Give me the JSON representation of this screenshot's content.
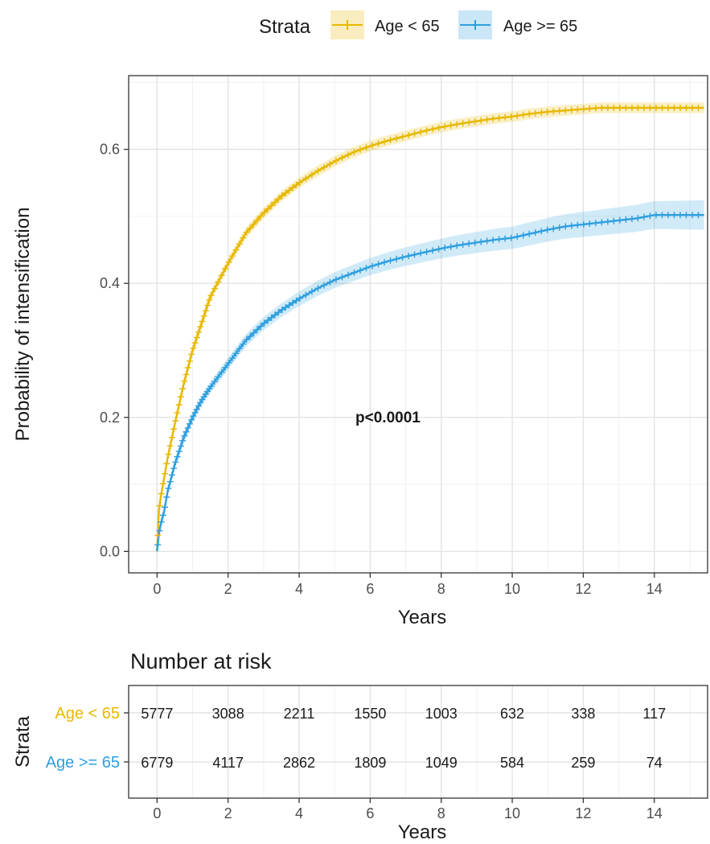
{
  "legend": {
    "title": "Strata",
    "entries": [
      {
        "label": "Age < 65",
        "color": "#E7B800"
      },
      {
        "label": "Age >= 65",
        "color": "#2E9FDF"
      }
    ]
  },
  "chart_data": [
    {
      "type": "line",
      "subtype": "kaplan-meier-cumulative-incidence",
      "title": "",
      "xlabel": "Years",
      "ylabel": "Probability of intensification",
      "xlim": [
        -0.8,
        15.5
      ],
      "ylim": [
        -0.032,
        0.71
      ],
      "xticks": [
        0,
        2,
        4,
        6,
        8,
        10,
        12,
        14
      ],
      "xtick_labels": [
        "0",
        "2",
        "4",
        "6",
        "8",
        "10",
        "12",
        "14"
      ],
      "yticks": [
        0.0,
        0.2,
        0.4,
        0.6
      ],
      "ytick_labels": [
        "0.0",
        "0.2",
        "0.4",
        "0.6"
      ],
      "grid": true,
      "legend_position": "top",
      "confidence_bands": true,
      "annotation": "p<0.0001",
      "annotation_at": {
        "x": 6.5,
        "y": 0.2
      },
      "series": [
        {
          "name": "Age < 65",
          "color": "#E7B800",
          "x": [
            0,
            0.05,
            0.1,
            0.2,
            0.3,
            0.5,
            0.75,
            1.0,
            1.25,
            1.5,
            2.0,
            2.5,
            3.0,
            3.5,
            4.0,
            4.5,
            5.0,
            5.5,
            6.0,
            6.5,
            7.0,
            7.5,
            8.0,
            8.5,
            9.0,
            9.5,
            10.0,
            10.5,
            11.0,
            11.5,
            12.0,
            12.5,
            13.0,
            13.5,
            14.0,
            14.5,
            15.0,
            15.4
          ],
          "y": [
            0.0,
            0.06,
            0.08,
            0.11,
            0.14,
            0.19,
            0.25,
            0.3,
            0.34,
            0.38,
            0.43,
            0.475,
            0.505,
            0.53,
            0.55,
            0.567,
            0.582,
            0.595,
            0.605,
            0.613,
            0.62,
            0.627,
            0.633,
            0.638,
            0.642,
            0.646,
            0.649,
            0.653,
            0.656,
            0.658,
            0.66,
            0.662,
            0.662,
            0.662,
            0.662,
            0.662,
            0.662,
            0.662
          ],
          "ci_halfwidth": 0.008
        },
        {
          "name": "Age >= 65",
          "color": "#2E9FDF",
          "x": [
            0,
            0.05,
            0.1,
            0.2,
            0.3,
            0.5,
            0.75,
            1.0,
            1.25,
            1.5,
            2.0,
            2.5,
            3.0,
            3.5,
            4.0,
            4.5,
            5.0,
            5.5,
            6.0,
            6.5,
            7.0,
            7.5,
            8.0,
            8.5,
            9.0,
            9.5,
            10.0,
            10.5,
            11.0,
            11.5,
            12.0,
            12.5,
            13.0,
            13.5,
            14.0,
            14.5,
            15.0,
            15.4
          ],
          "y": [
            0.0,
            0.025,
            0.04,
            0.06,
            0.09,
            0.13,
            0.17,
            0.2,
            0.225,
            0.245,
            0.28,
            0.315,
            0.34,
            0.36,
            0.377,
            0.392,
            0.405,
            0.415,
            0.425,
            0.433,
            0.44,
            0.446,
            0.452,
            0.457,
            0.461,
            0.465,
            0.468,
            0.474,
            0.48,
            0.485,
            0.488,
            0.491,
            0.494,
            0.497,
            0.502,
            0.502,
            0.502,
            0.502
          ],
          "ci_halfwidth_start": 0.007,
          "ci_halfwidth_end": 0.022
        }
      ]
    },
    {
      "type": "table",
      "title": "Number at risk",
      "xlabel": "Years",
      "ylabel": "Strata",
      "xticks": [
        0,
        2,
        4,
        6,
        8,
        10,
        12,
        14
      ],
      "xtick_labels": [
        "0",
        "2",
        "4",
        "6",
        "8",
        "10",
        "12",
        "14"
      ],
      "grid": true,
      "rows": [
        {
          "name": "Age < 65",
          "color": "#E7B800",
          "values": [
            5777,
            3088,
            2211,
            1550,
            1003,
            632,
            338,
            117
          ]
        },
        {
          "name": "Age >= 65",
          "color": "#2E9FDF",
          "values": [
            6779,
            4117,
            2862,
            1809,
            1049,
            584,
            259,
            74
          ]
        }
      ]
    }
  ]
}
